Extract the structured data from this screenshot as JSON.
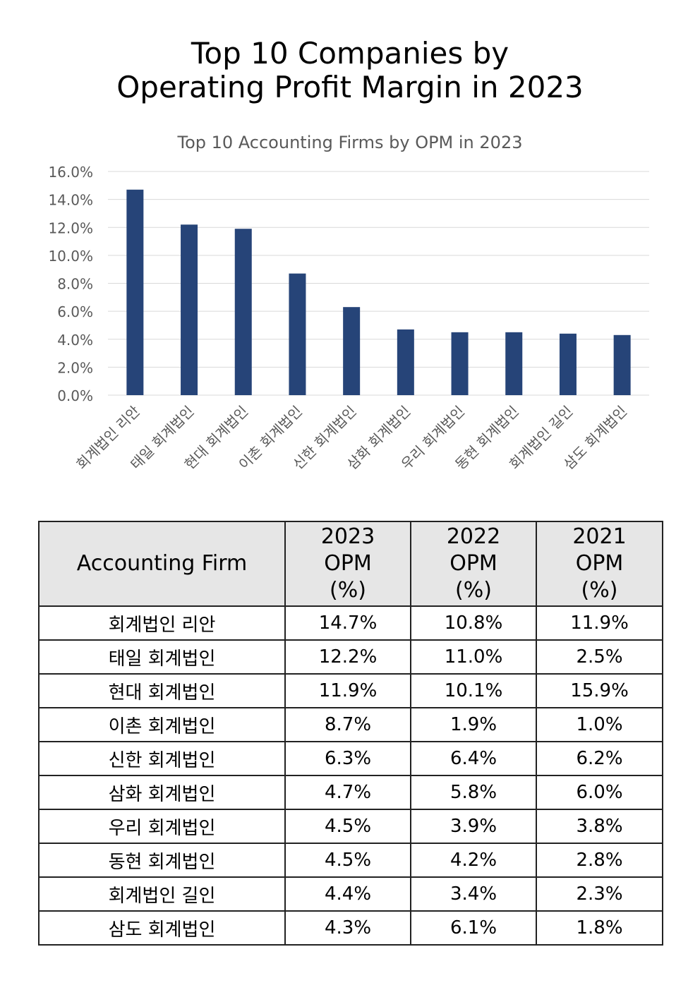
{
  "page": {
    "title_line1": "Top 10 Companies by",
    "title_line2": "Operating Profit Margin in 2023"
  },
  "chart_data": {
    "type": "bar",
    "title": "Top 10 Accounting Firms by OPM in 2023",
    "xlabel": "",
    "ylabel": "",
    "categories": [
      "회계법인 리안",
      "태일 회계법인",
      "현대 회계법인",
      "이촌 회계법인",
      "신한 회계법인",
      "삼화 회계법인",
      "우리 회계법인",
      "동현 회계법인",
      "회계법인 길인",
      "삼도 회계법인"
    ],
    "values": [
      14.7,
      12.2,
      11.9,
      8.7,
      6.3,
      4.7,
      4.5,
      4.5,
      4.4,
      4.3
    ],
    "ylim": [
      0,
      16
    ],
    "yticks": [
      "0.0%",
      "2.0%",
      "4.0%",
      "6.0%",
      "8.0%",
      "10.0%",
      "12.0%",
      "14.0%",
      "16.0%"
    ],
    "grid": true,
    "legend": "none",
    "bar_color": "#264478"
  },
  "table": {
    "headers": {
      "firm": "Accounting Firm",
      "opm2023": [
        "2023",
        "OPM",
        "(%)"
      ],
      "opm2022": [
        "2022",
        "OPM",
        "(%)"
      ],
      "opm2021": [
        "2021",
        "OPM",
        "(%)"
      ]
    },
    "rows": [
      {
        "firm": "회계법인 리안",
        "opm2023": "14.7%",
        "opm2022": "10.8%",
        "opm2021": "11.9%"
      },
      {
        "firm": "태일 회계법인",
        "opm2023": "12.2%",
        "opm2022": "11.0%",
        "opm2021": "2.5%"
      },
      {
        "firm": "현대 회계법인",
        "opm2023": "11.9%",
        "opm2022": "10.1%",
        "opm2021": "15.9%"
      },
      {
        "firm": "이촌 회계법인",
        "opm2023": "8.7%",
        "opm2022": "1.9%",
        "opm2021": "1.0%"
      },
      {
        "firm": "신한 회계법인",
        "opm2023": "6.3%",
        "opm2022": "6.4%",
        "opm2021": "6.2%"
      },
      {
        "firm": "삼화 회계법인",
        "opm2023": "4.7%",
        "opm2022": "5.8%",
        "opm2021": "6.0%"
      },
      {
        "firm": "우리 회계법인",
        "opm2023": "4.5%",
        "opm2022": "3.9%",
        "opm2021": "3.8%"
      },
      {
        "firm": "동현 회계법인",
        "opm2023": "4.5%",
        "opm2022": "4.2%",
        "opm2021": "2.8%"
      },
      {
        "firm": "회계법인 길인",
        "opm2023": "4.4%",
        "opm2022": "3.4%",
        "opm2021": "2.3%"
      },
      {
        "firm": "삼도 회계법인",
        "opm2023": "4.3%",
        "opm2022": "6.1%",
        "opm2021": "1.8%"
      }
    ]
  }
}
